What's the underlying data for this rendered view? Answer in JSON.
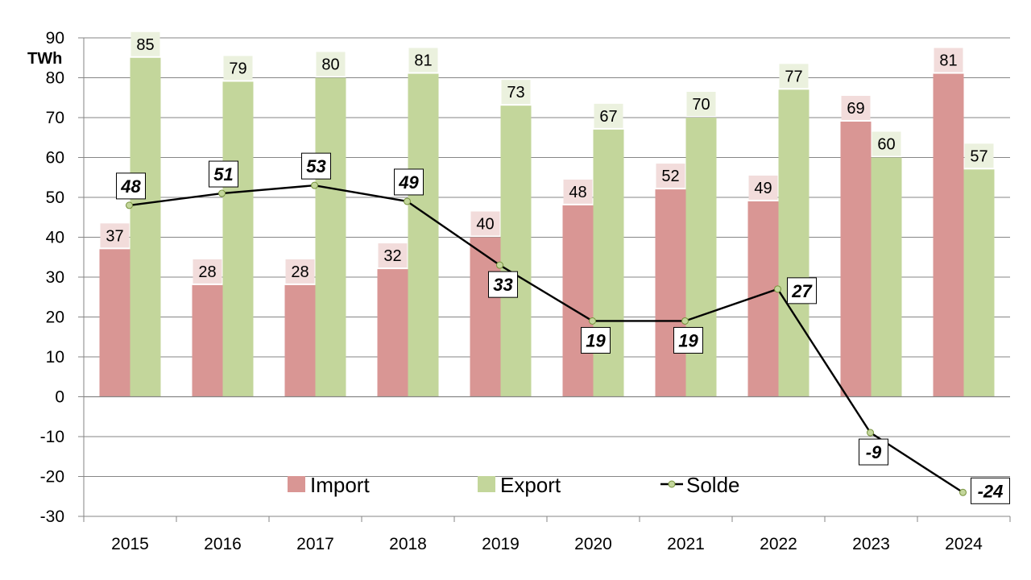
{
  "chart_data": {
    "type": "bar",
    "title": "",
    "xlabel": "",
    "ylabel": "TWh",
    "categories": [
      "2015",
      "2016",
      "2017",
      "2018",
      "2019",
      "2020",
      "2021",
      "2022",
      "2023",
      "2024"
    ],
    "series": [
      {
        "name": "Import",
        "type": "bar",
        "color": "#D99694",
        "label_bg": "#F2DCDB",
        "values": [
          37,
          28,
          28,
          32,
          40,
          48,
          52,
          49,
          69,
          81
        ]
      },
      {
        "name": "Export",
        "type": "bar",
        "color": "#C3D69B",
        "label_bg": "#EBF1DE",
        "values": [
          85,
          79,
          80,
          81,
          73,
          67,
          70,
          77,
          60,
          57
        ]
      },
      {
        "name": "Solde",
        "type": "line",
        "color": "#000000",
        "marker_color": "#C3D69B",
        "values": [
          48,
          51,
          53,
          49,
          33,
          19,
          19,
          27,
          -9,
          -24
        ]
      }
    ],
    "ylim": [
      -30,
      90
    ],
    "yticks": [
      -30,
      -20,
      -10,
      0,
      10,
      20,
      30,
      40,
      50,
      60,
      70,
      80,
      90
    ],
    "grid": true,
    "legend_position": "bottom-center"
  }
}
